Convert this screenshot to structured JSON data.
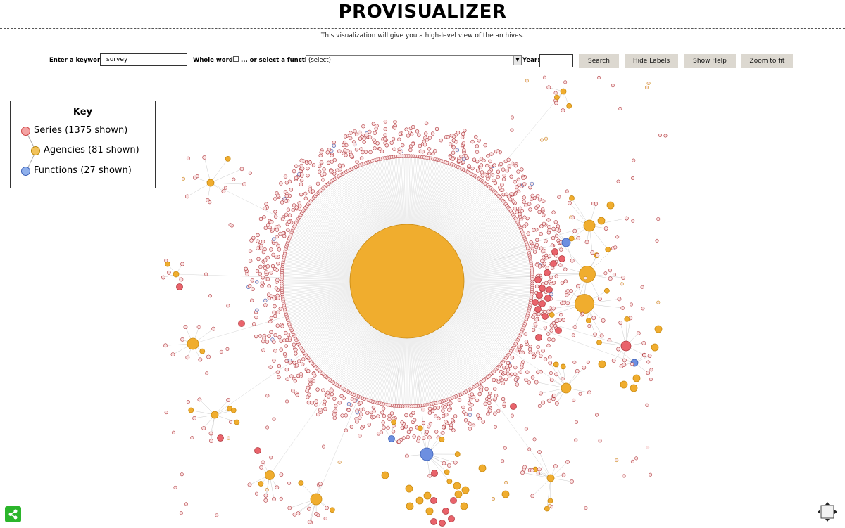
{
  "header": {
    "title": "PROVISUALIZER",
    "subtitle": "This visualization will give you a high-level view of the archives."
  },
  "controls": {
    "keyword_label": "Enter a keyword:",
    "keyword_value": "survey",
    "whole_words_label": "Whole words",
    "whole_words_checked": false,
    "function_label": "... or select a function:",
    "function_selected": "(select)",
    "year_label": "Year:",
    "year_value": "",
    "search_label": "Search",
    "hide_labels_label": "Hide Labels",
    "show_help_label": "Show Help",
    "zoom_to_fit_label": "Zoom to fit"
  },
  "legend": {
    "title": "Key",
    "items": [
      {
        "label": "Series (1375 shown)",
        "color": "#f4a3a3"
      },
      {
        "label": "Agencies (81 shown)",
        "color": "#f2c25a"
      },
      {
        "label": "Functions (27 shown)",
        "color": "#8fb0ec"
      }
    ]
  },
  "colors": {
    "series": "#e9636b",
    "agency": "#f0ad2e",
    "function": "#6d8fe0",
    "edge": "#cccccc",
    "share": "#2bb52b"
  },
  "icons": {
    "share": "share-icon",
    "zoom": "move-arrows-icon"
  }
}
